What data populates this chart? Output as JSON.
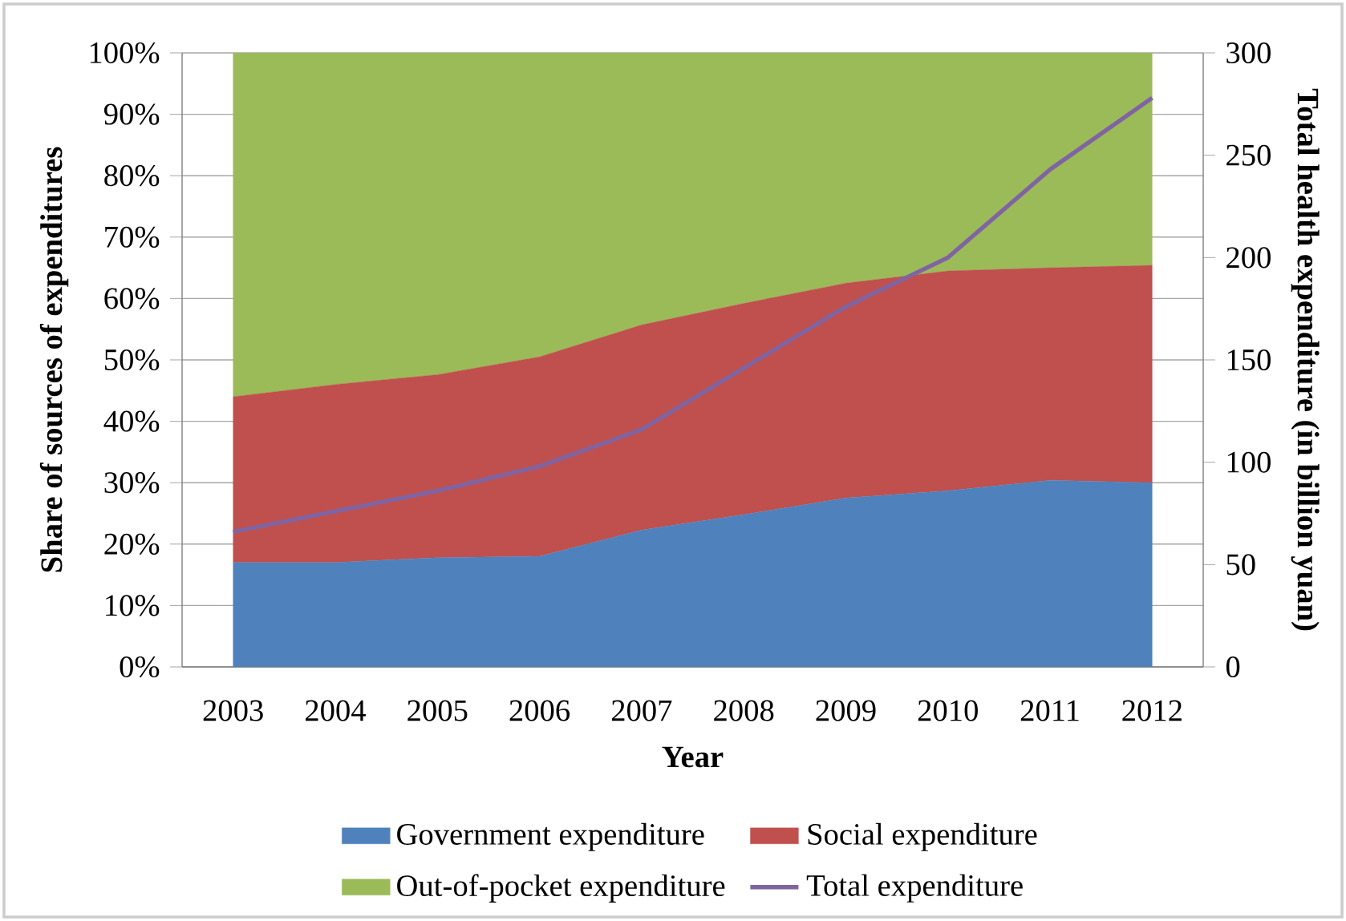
{
  "chart_data": {
    "type": "area",
    "stacked": true,
    "xlabel": "Year",
    "ylabel": "Share of sources of expenditures",
    "y2label": "Total health expenditure (in billion yuan)",
    "categories": [
      "2003",
      "2004",
      "2005",
      "2006",
      "2007",
      "2008",
      "2009",
      "2010",
      "2011",
      "2012"
    ],
    "series": [
      {
        "name": "Government expenditure",
        "color": "#4f81bd",
        "values": [
          17,
          17,
          17.8,
          18,
          22.3,
          24.8,
          27.5,
          28.7,
          30.4,
          30
        ]
      },
      {
        "name": "Social expenditure",
        "color": "#c0504d",
        "values": [
          27,
          29,
          29.8,
          32.5,
          33.4,
          34.4,
          35,
          35.8,
          34.6,
          35.4
        ]
      },
      {
        "name": "Out-of-pocket expenditure",
        "color": "#9bbb59",
        "values": [
          56,
          54,
          52.4,
          49.5,
          44.3,
          40.8,
          37.5,
          35.5,
          35,
          34.6
        ]
      },
      {
        "name": "Total expenditure",
        "color": "#8064a2",
        "type": "line",
        "axis": "y2",
        "values": [
          66,
          76,
          86,
          98,
          116,
          146,
          176,
          200,
          243,
          278
        ]
      }
    ],
    "ylim": [
      0,
      100
    ],
    "yticks": [
      {
        "value": 0,
        "label": "0%"
      },
      {
        "value": 10,
        "label": "10%"
      },
      {
        "value": 20,
        "label": "20%"
      },
      {
        "value": 30,
        "label": "30%"
      },
      {
        "value": 40,
        "label": "40%"
      },
      {
        "value": 50,
        "label": "50%"
      },
      {
        "value": 60,
        "label": "60%"
      },
      {
        "value": 70,
        "label": "70%"
      },
      {
        "value": 80,
        "label": "80%"
      },
      {
        "value": 90,
        "label": "90%"
      },
      {
        "value": 100,
        "label": "100%"
      }
    ],
    "y2lim": [
      0,
      300
    ],
    "y2ticks": [
      0,
      50,
      100,
      150,
      200,
      250,
      300
    ],
    "grid": "y",
    "legend": "bottom"
  }
}
